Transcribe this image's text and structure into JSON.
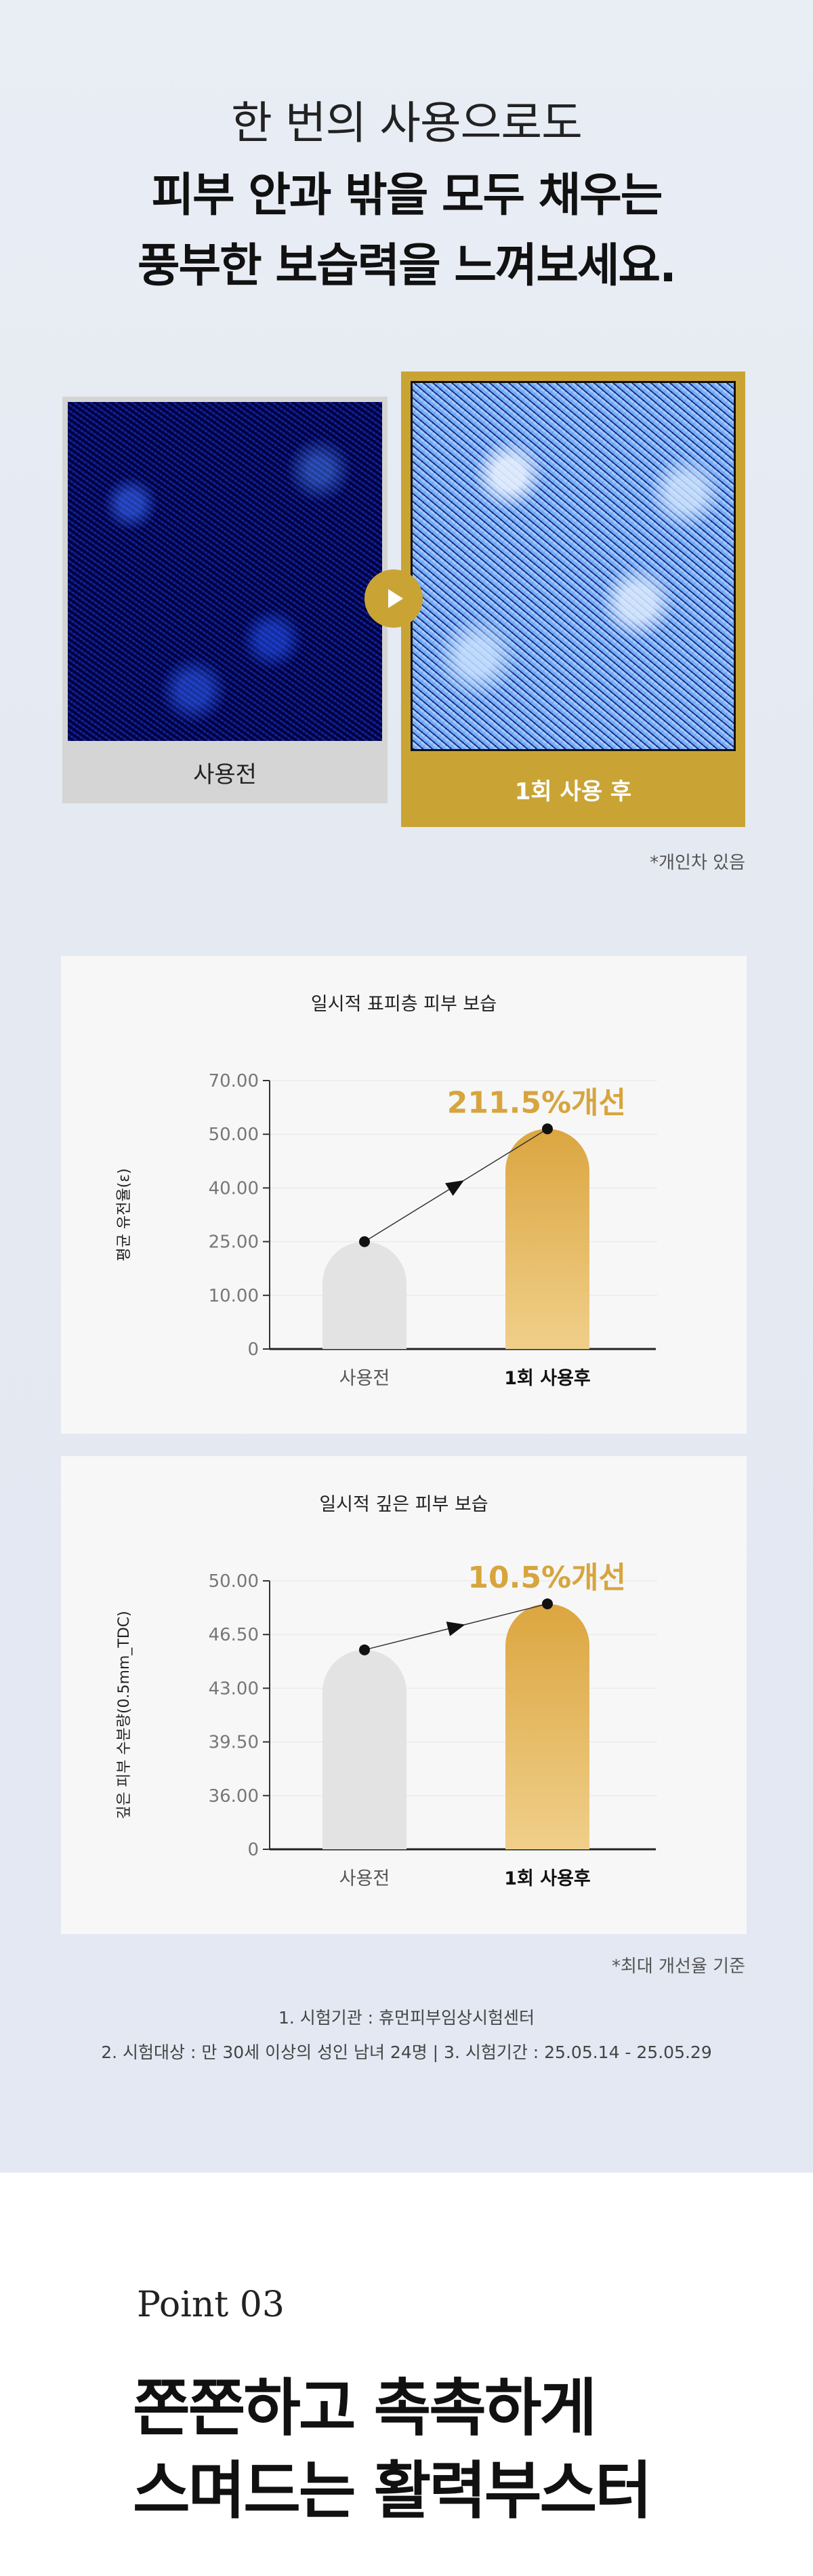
{
  "headline": {
    "line1": "한 번의 사용으로도",
    "line2": "피부 안과 밖을 모두 채우는",
    "line3": "풍부한 보습력을 느껴보세요."
  },
  "comparison": {
    "before_label": "사용전",
    "after_label": "1회 사용 후",
    "note": "*개인차 있음",
    "accent_color": "#c9a435"
  },
  "chart_data": [
    {
      "type": "bar",
      "title": "일시적 표피층 피부 보습",
      "ylabel": "평균 유전율(ε)",
      "yticks": [
        "70.00",
        "50.00",
        "40.00",
        "25.00",
        "10.00",
        "0"
      ],
      "categories": [
        "사용전",
        "1회 사용후"
      ],
      "values": [
        25,
        52
      ],
      "improvement": "211.5%개선",
      "colors": [
        "#e3e3e3",
        "#dcaa45"
      ]
    },
    {
      "type": "bar",
      "title": "일시적 깊은 피부 보습",
      "ylabel": "깊은 피부 수분량(0.5mm_TDC)",
      "yticks": [
        "50.00",
        "46.50",
        "43.00",
        "39.50",
        "36.00",
        "0"
      ],
      "categories": [
        "사용전",
        "1회 사용후"
      ],
      "values": [
        45.5,
        48.5
      ],
      "improvement": "10.5%개선",
      "colors": [
        "#e3e3e3",
        "#dcaa45"
      ]
    }
  ],
  "footnotes": {
    "max_note": "*최대 개선율 기준",
    "line1": "1. 시험기관 : 휴먼피부임상시험센터",
    "line2": "2. 시험대상 : 만 30세 이상의 성인 남녀 24명  |  3. 시험기간 : 25.05.14 - 25.05.29"
  },
  "point": {
    "label": "Point 03",
    "title_line1": "쫀쫀하고 촉촉하게",
    "title_line2": "스며드는 활력부스터"
  }
}
